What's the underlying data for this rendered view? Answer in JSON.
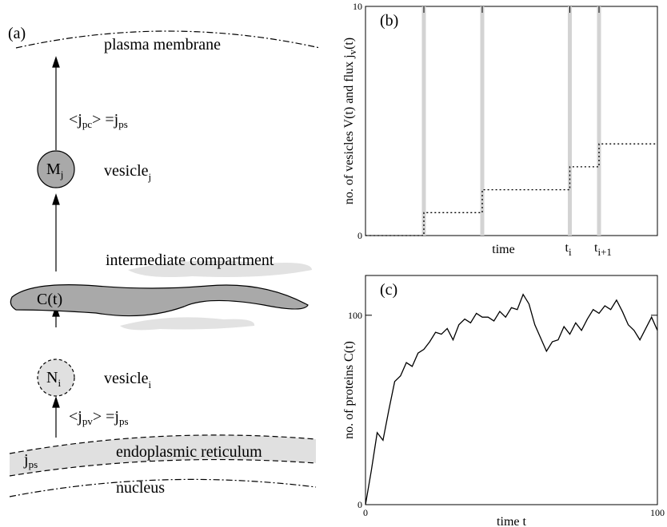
{
  "diagram": {
    "panel_label": "(a)",
    "plasma_membrane": "plasma membrane",
    "flux_top": {
      "a": "<j",
      "a_sub": "pc",
      "b": "> =j",
      "b_sub": "ps"
    },
    "vesicle_j_node": {
      "text": "M",
      "sub": "j"
    },
    "vesicle_j": {
      "text": "vesicle",
      "sub": "j"
    },
    "intermediate": "intermediate compartment",
    "compartment_node": "C(t)",
    "vesicle_i_node": {
      "text": "N",
      "sub": "i"
    },
    "vesicle_i": {
      "text": "vesicle",
      "sub": "i"
    },
    "flux_bottom": {
      "a": "<j",
      "a_sub": "pv",
      "b": "> =j",
      "b_sub": "ps"
    },
    "source": {
      "text": "j",
      "sub": "ps"
    },
    "er": "endoplasmic reticulum",
    "nucleus": "nucleus"
  },
  "chart_data": [
    {
      "type": "step",
      "panel_label": "(b)",
      "y_label": {
        "text": "no. of vesicles V(t) and flux j",
        "sub": "v",
        "tail": "(t)"
      },
      "x_label": "time",
      "x": [
        0,
        20,
        40,
        70,
        80
      ],
      "values": [
        0,
        1,
        2,
        3,
        4
      ],
      "color": "#000",
      "flux_x": [
        20,
        40,
        70,
        80
      ],
      "flux_color": "#d3d3d3",
      "xlim": [
        0,
        100
      ],
      "ylim": [
        0,
        10
      ],
      "yticks": [
        0,
        10
      ],
      "xticks": [
        {
          "value": 70,
          "label": "t",
          "sub": "i"
        },
        {
          "value": 80,
          "label": "t",
          "sub": "i+1"
        }
      ]
    },
    {
      "type": "line",
      "panel_label": "(c)",
      "y_label": {
        "text": "no. of proteins  C(t)"
      },
      "x_label": "time  t",
      "x": [
        0,
        2,
        4,
        6,
        8,
        10,
        12,
        14,
        16,
        18,
        20,
        22,
        24,
        26,
        28,
        30,
        32,
        34,
        36,
        38,
        40,
        42,
        44,
        46,
        48,
        50,
        52,
        54,
        56,
        58,
        60,
        62,
        64,
        66,
        68,
        70,
        72,
        74,
        76,
        78,
        80,
        82,
        84,
        86,
        88,
        90,
        92,
        94,
        96,
        98,
        100
      ],
      "values": [
        0,
        18,
        38,
        34,
        50,
        65,
        68,
        75,
        73,
        80,
        82,
        86,
        91,
        90,
        93,
        87,
        95,
        98,
        96,
        101,
        99,
        99,
        97,
        102,
        99,
        104,
        103,
        111,
        106,
        95,
        88,
        81,
        86,
        87,
        94,
        90,
        96,
        92,
        98,
        103,
        101,
        105,
        103,
        108,
        102,
        95,
        92,
        87,
        93,
        99,
        92
      ],
      "color": "#000",
      "xlim": [
        0,
        100
      ],
      "ylim": [
        0,
        121
      ],
      "xticks": [
        0,
        100
      ],
      "yticks": [
        0,
        100
      ]
    }
  ]
}
